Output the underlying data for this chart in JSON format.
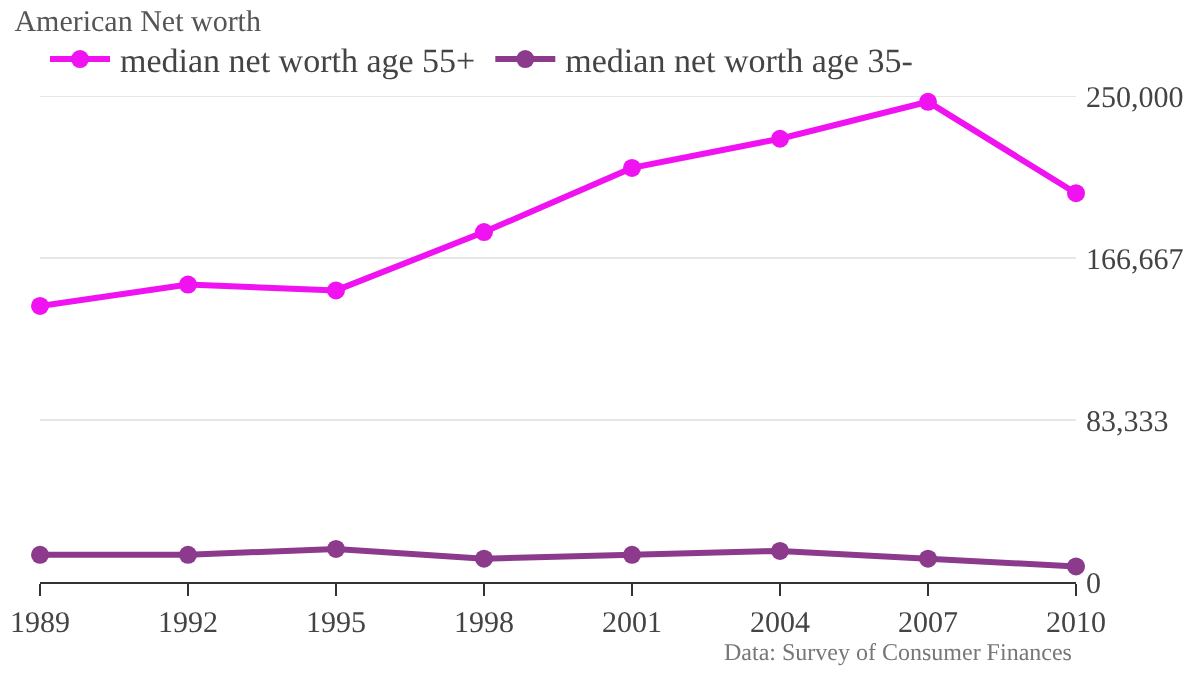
{
  "chart_data": {
    "type": "line",
    "title": "American Net worth",
    "x": [
      1989,
      1992,
      1995,
      1998,
      2001,
      2004,
      2007,
      2010
    ],
    "xlim": [
      1989,
      2010
    ],
    "xticks": [
      1989,
      1992,
      1995,
      1998,
      2001,
      2004,
      2007,
      2010
    ],
    "ylim": [
      0,
      250000
    ],
    "yticks": [
      {
        "value": 0,
        "label": "0"
      },
      {
        "value": 83333,
        "label": "83,333"
      },
      {
        "value": 166667,
        "label": "166,667"
      },
      {
        "value": 250000,
        "label": "250,000"
      }
    ],
    "series": [
      {
        "name": "median net worth age 55+",
        "color": "#f012f0",
        "values": [
          142000,
          153000,
          150000,
          180000,
          213000,
          228000,
          247000,
          200000
        ]
      },
      {
        "name": "median net worth age 35-",
        "color": "#8c3a8c",
        "values": [
          14000,
          14000,
          17000,
          12000,
          14000,
          16000,
          12000,
          8000
        ]
      }
    ],
    "grid": "y",
    "legend": "top left",
    "marker": "circle",
    "line_style": "solid",
    "annotations": [
      "Data: Survey of Consumer Finances"
    ]
  }
}
